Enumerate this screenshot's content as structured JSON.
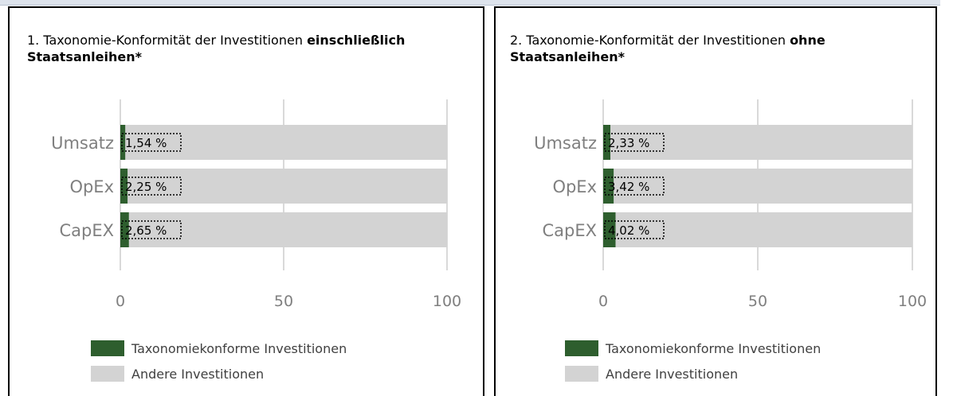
{
  "charts": [
    {
      "chart_data": {
        "type": "bar",
        "orientation": "horizontal",
        "stacked": true,
        "title": "1. Taxonomie-Konformität der Investitionen",
        "title_emphasis": "einschließlich Staatsanleihen*",
        "categories": [
          "Umsatz",
          "OpEx",
          "CapEX"
        ],
        "series": [
          {
            "name": "Taxonomiekonforme Investitionen",
            "color": "#2e5e2e",
            "values": [
              1.54,
              2.25,
              2.65
            ],
            "value_labels": [
              "1,54 %",
              "2,25 %",
              "2,65 %"
            ]
          },
          {
            "name": "Andere Investitionen",
            "color": "#d3d3d3",
            "values": [
              98.46,
              97.75,
              97.35
            ]
          }
        ],
        "xlim": [
          0,
          100
        ],
        "xticks": [
          0,
          50,
          100
        ],
        "grid": true,
        "legend": "bottom"
      }
    },
    {
      "chart_data": {
        "type": "bar",
        "orientation": "horizontal",
        "stacked": true,
        "title": "2. Taxonomie-Konformität der Investitionen",
        "title_emphasis": "ohne Staatsanleihen*",
        "categories": [
          "Umsatz",
          "OpEx",
          "CapEX"
        ],
        "series": [
          {
            "name": "Taxonomiekonforme Investitionen",
            "color": "#2e5e2e",
            "values": [
              2.33,
              3.42,
              4.02
            ],
            "value_labels": [
              "2,33 %",
              "3,42 %",
              "4,02 %"
            ]
          },
          {
            "name": "Andere Investitionen",
            "color": "#d3d3d3",
            "values": [
              97.67,
              96.58,
              95.98
            ]
          }
        ],
        "xlim": [
          0,
          100
        ],
        "xticks": [
          0,
          50,
          100
        ],
        "grid": true,
        "legend": "bottom"
      }
    }
  ]
}
